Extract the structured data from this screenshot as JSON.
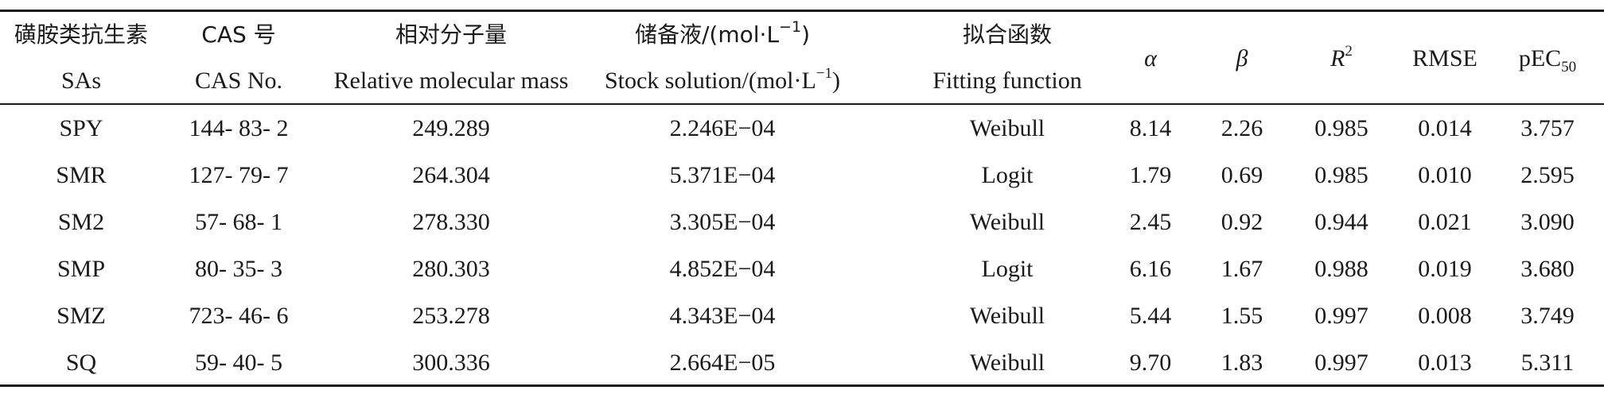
{
  "headers": {
    "sas_cn": "磺胺类抗生素",
    "sas_en": "SAs",
    "cas_cn": "CAS 号",
    "cas_en": "CAS No.",
    "mass_cn": "相对分子量",
    "mass_en": "Relative molecular mass",
    "stock_cn": "储备液/(mol·L",
    "stock_cn_sup": "−1",
    "stock_cn_end": ")",
    "stock_en": "Stock solution/(mol·L",
    "stock_en_sup": "−1",
    "stock_en_end": ")",
    "fit_cn": "拟合函数",
    "fit_en": "Fitting function",
    "alpha": "α",
    "beta": "β",
    "r2": "R",
    "r2_sup": "2",
    "rmse": "RMSE",
    "pec": "pEC",
    "pec_sub": "50"
  },
  "rows": [
    {
      "sa": "SPY",
      "cas": "144- 83- 2",
      "mass": "249.289",
      "stock": "2.246E−04",
      "fit": "Weibull",
      "alpha": "8.14",
      "beta": "2.26",
      "r2": "0.985",
      "rmse": "0.014",
      "pec": "3.757"
    },
    {
      "sa": "SMR",
      "cas": "127- 79- 7",
      "mass": "264.304",
      "stock": "5.371E−04",
      "fit": "Logit",
      "alpha": "1.79",
      "beta": "0.69",
      "r2": "0.985",
      "rmse": "0.010",
      "pec": "2.595"
    },
    {
      "sa": "SM2",
      "cas": "57- 68- 1",
      "mass": "278.330",
      "stock": "3.305E−04",
      "fit": "Weibull",
      "alpha": "2.45",
      "beta": "0.92",
      "r2": "0.944",
      "rmse": "0.021",
      "pec": "3.090"
    },
    {
      "sa": "SMP",
      "cas": "80- 35- 3",
      "mass": "280.303",
      "stock": "4.852E−04",
      "fit": "Logit",
      "alpha": "6.16",
      "beta": "1.67",
      "r2": "0.988",
      "rmse": "0.019",
      "pec": "3.680"
    },
    {
      "sa": "SMZ",
      "cas": "723- 46- 6",
      "mass": "253.278",
      "stock": "4.343E−04",
      "fit": "Weibull",
      "alpha": "5.44",
      "beta": "1.55",
      "r2": "0.997",
      "rmse": "0.008",
      "pec": "3.749"
    },
    {
      "sa": "SQ",
      "cas": "59- 40- 5",
      "mass": "300.336",
      "stock": "2.664E−05",
      "fit": "Weibull",
      "alpha": "9.70",
      "beta": "1.83",
      "r2": "0.997",
      "rmse": "0.013",
      "pec": "5.311"
    }
  ]
}
